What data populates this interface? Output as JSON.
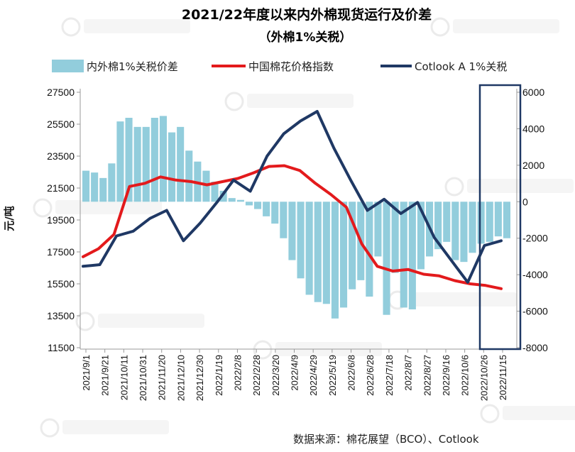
{
  "chart_data": {
    "type": "bar+line",
    "title": "2021/22年度以来内外棉现货运行及价差",
    "subtitle": "（外棉1%关税）",
    "ylabel": "元/吨",
    "ylim_left": [
      11500,
      27500
    ],
    "ylim_right": [
      -8000,
      6000
    ],
    "yticks_left": [
      27500,
      25500,
      23500,
      21500,
      19500,
      17500,
      15500,
      13500,
      11500
    ],
    "yticks_right": [
      6000,
      4000,
      2000,
      0,
      -2000,
      -4000,
      -6000,
      -8000
    ],
    "x_tick_labels": [
      "2021/9/1",
      "2021/9/21",
      "2021/10/11",
      "2021/10/31",
      "2021/11/20",
      "2021/12/10",
      "2021/12/30",
      "2022/1/19",
      "2022/2/8",
      "2022/2/28",
      "2022/3/20",
      "2022/4/9",
      "2022/4/29",
      "2022/5/19",
      "2022/6/8",
      "2022/6/28",
      "2022/7/18",
      "2022/8/7",
      "2022/8/27",
      "2022/9/16",
      "2022/10/6",
      "2022/10/26",
      "2022/11/15"
    ],
    "legend": [
      "内外棉1%关税价差",
      "中国棉花价格指数",
      "Cotlook A 1%关税"
    ],
    "legend_position": "top",
    "source": "数据来源：棉花展望（BCO）、Cotlook",
    "colors": {
      "spread": "#92cddc",
      "cn_index": "#e31a1c",
      "cotlook": "#1f3864",
      "highlight_box": "#1f3864"
    },
    "series": [
      {
        "name": "中国棉花价格指数",
        "axis": "left",
        "values": [
          17200,
          17700,
          18600,
          21600,
          21800,
          22200,
          22000,
          21900,
          21700,
          21900,
          22100,
          22450,
          22850,
          22900,
          22600,
          21800,
          21100,
          20300,
          18000,
          16600,
          16300,
          16400,
          16100,
          16000,
          15700,
          15500,
          15400,
          15200
        ]
      },
      {
        "name": "Cotlook A 1%关税",
        "axis": "left",
        "values": [
          16600,
          16700,
          18500,
          18800,
          19600,
          20100,
          18200,
          19300,
          20600,
          22000,
          21300,
          23500,
          24900,
          25700,
          26300,
          24000,
          22000,
          20100,
          20800,
          19900,
          20600,
          18400,
          17000,
          15600,
          17900,
          18200
        ]
      },
      {
        "name": "内外棉1%关税价差",
        "axis": "right",
        "type": "bar",
        "values": [
          1700,
          1600,
          1300,
          2100,
          4400,
          4600,
          4100,
          4100,
          4600,
          4700,
          3800,
          4100,
          2800,
          2200,
          1700,
          1100,
          600,
          200,
          100,
          -200,
          -400,
          -800,
          -1200,
          -2000,
          -3200,
          -4200,
          -5100,
          -5500,
          -5600,
          -6400,
          -5800,
          -4800,
          -4300,
          -5200,
          -3000,
          -6200,
          -3900,
          -5800,
          -5900,
          -3700,
          -3000,
          -2600,
          -2200,
          -3200,
          -3300,
          -2800,
          -2300,
          -2200,
          -1900,
          -2000
        ]
      }
    ]
  }
}
